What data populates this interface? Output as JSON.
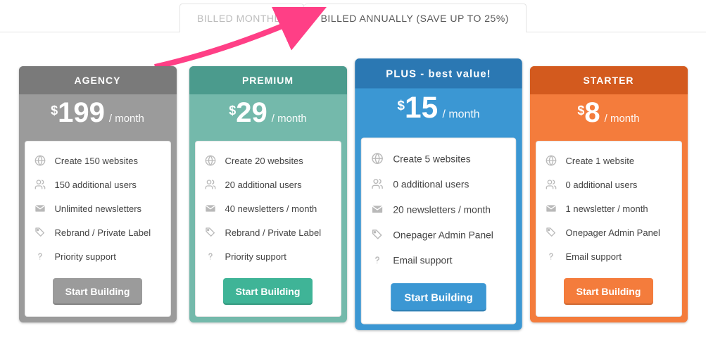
{
  "tabs": {
    "monthly": "BILLED MONTHLY",
    "annually": "BILLED ANNUALLY (SAVE UP TO 25%)",
    "active": "annually"
  },
  "arrow": {
    "color": "#ff3f86"
  },
  "currency": "$",
  "period": "/ month",
  "cta_label": "Start Building",
  "plans": [
    {
      "key": "agency",
      "title": "AGENCY",
      "price": "199",
      "header_color": "#7a7a7a",
      "body_color": "#9b9b9b",
      "button_color": "#9b9b9b",
      "featured": false,
      "features": [
        {
          "icon": "globe",
          "text": "Create 150 websites"
        },
        {
          "icon": "users",
          "text": "150 additional users"
        },
        {
          "icon": "mail",
          "text": "Unlimited newsletters"
        },
        {
          "icon": "tag",
          "text": "Rebrand / Private Label"
        },
        {
          "icon": "question",
          "text": "Priority support"
        }
      ]
    },
    {
      "key": "premium",
      "title": "PREMIUM",
      "price": "29",
      "header_color": "#4b9b8d",
      "body_color": "#74b9ab",
      "button_color": "#3fb497",
      "featured": false,
      "features": [
        {
          "icon": "globe",
          "text": "Create 20 websites"
        },
        {
          "icon": "users",
          "text": "20 additional users"
        },
        {
          "icon": "mail",
          "text": "40 newsletters / month"
        },
        {
          "icon": "tag",
          "text": "Rebrand / Private Label"
        },
        {
          "icon": "question",
          "text": "Priority support"
        }
      ]
    },
    {
      "key": "plus",
      "title": "PLUS - best value!",
      "price": "15",
      "header_color": "#2b78b3",
      "body_color": "#3b97d3",
      "button_color": "#3b97d3",
      "featured": true,
      "features": [
        {
          "icon": "globe",
          "text": "Create 5 websites"
        },
        {
          "icon": "users",
          "text": "0 additional users"
        },
        {
          "icon": "mail",
          "text": "20 newsletters / month"
        },
        {
          "icon": "tag",
          "text": "Onepager Admin Panel"
        },
        {
          "icon": "question",
          "text": "Email support"
        }
      ]
    },
    {
      "key": "starter",
      "title": "STARTER",
      "price": "8",
      "header_color": "#d35a1e",
      "body_color": "#f47c3c",
      "button_color": "#f47c3c",
      "featured": false,
      "features": [
        {
          "icon": "globe",
          "text": "Create 1 website"
        },
        {
          "icon": "users",
          "text": "0 additional users"
        },
        {
          "icon": "mail",
          "text": "1 newsletter / month"
        },
        {
          "icon": "tag",
          "text": "Onepager Admin Panel"
        },
        {
          "icon": "question",
          "text": "Email support"
        }
      ]
    }
  ]
}
